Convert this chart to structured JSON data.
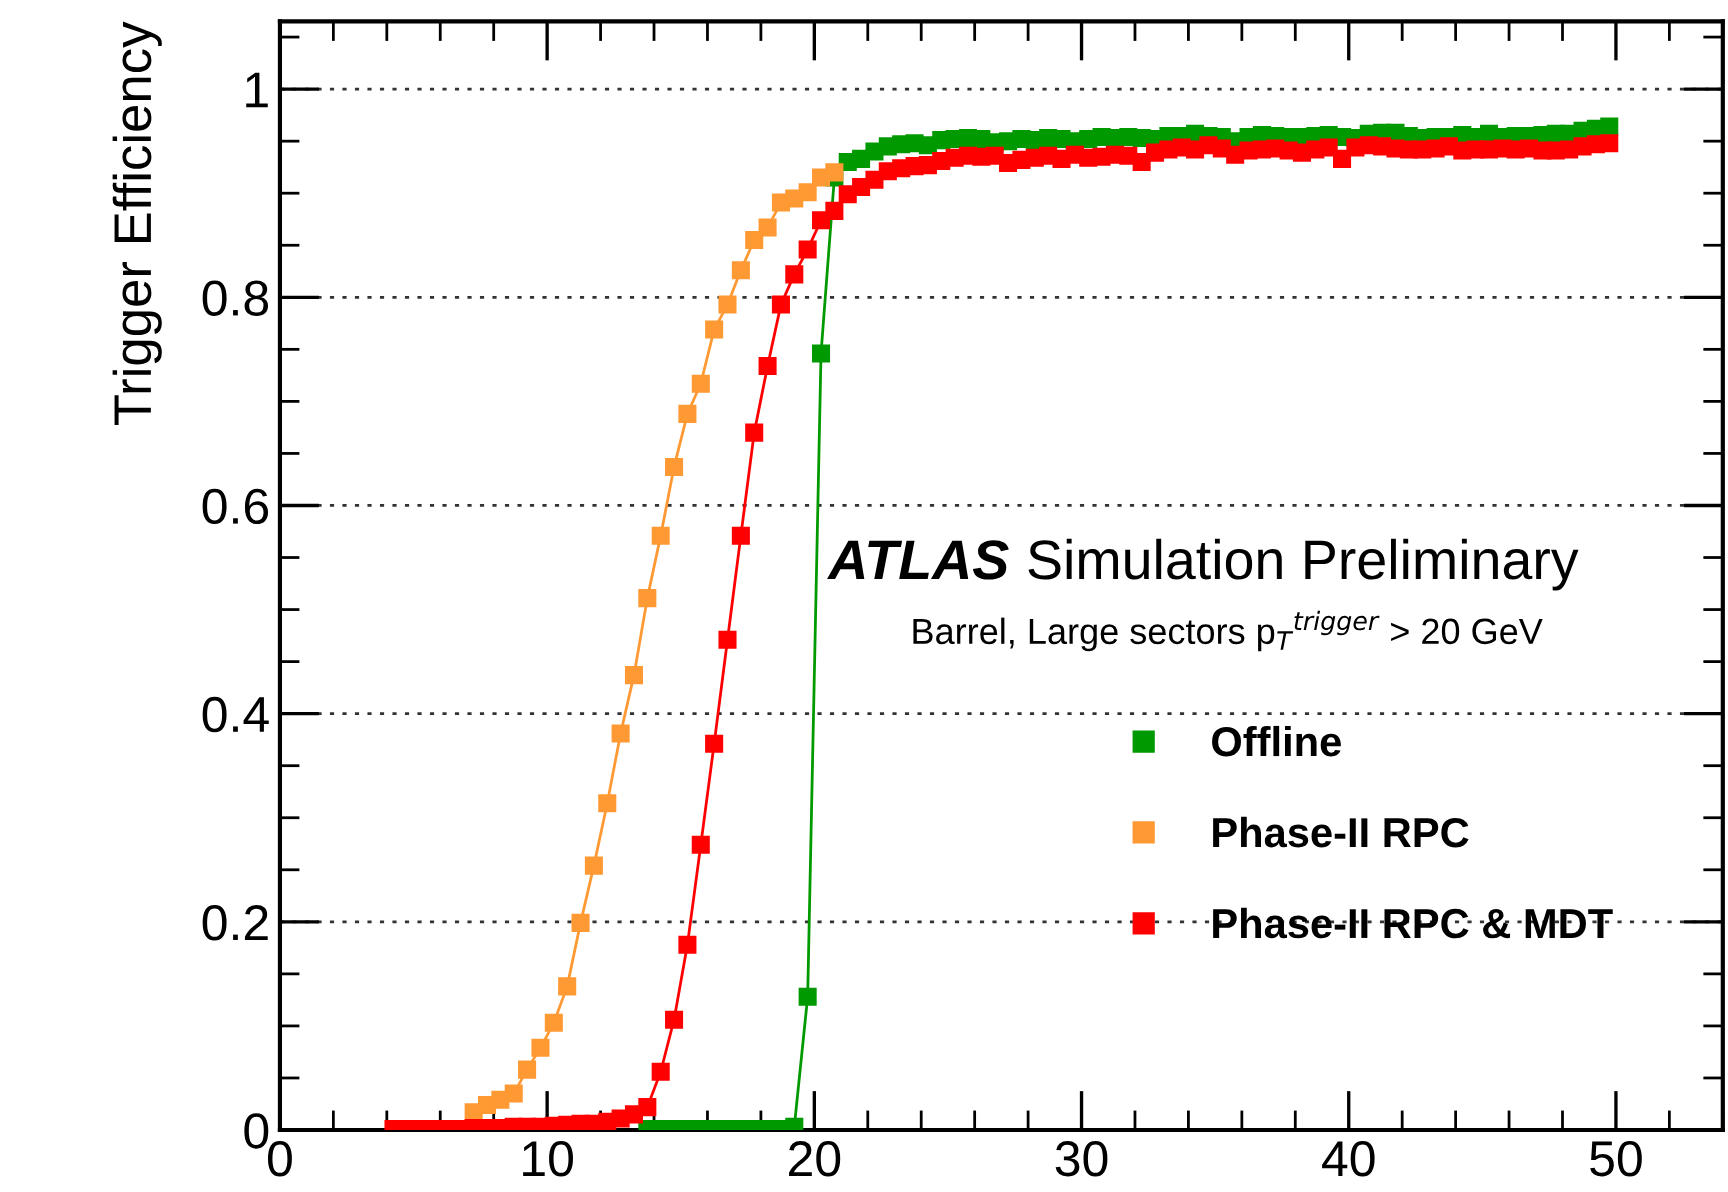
{
  "chart_data": {
    "type": "line",
    "ylabel": "Trigger Efficiency",
    "annotations": [
      "ATLAS",
      "Simulation Preliminary",
      "Barrel, Large sectors p$_{T}$$^{trigger}$ > 20 GeV"
    ],
    "x": [
      4.25,
      4.75,
      5.25,
      5.75,
      6.25,
      6.75,
      7.25,
      7.75,
      8.25,
      8.75,
      9.25,
      9.75,
      10.25,
      10.75,
      11.25,
      11.75,
      12.25,
      12.75,
      13.25,
      13.75,
      14.25,
      14.75,
      15.25,
      15.75,
      16.25,
      16.75,
      17.25,
      17.75,
      18.25,
      18.75,
      19.25,
      19.75,
      20.25,
      20.75,
      21.25,
      21.75,
      22.25,
      22.75,
      23.25,
      23.75,
      24.25,
      24.75,
      25.25,
      25.75,
      26.25,
      26.75,
      27.25,
      27.75,
      28.25,
      28.75,
      29.25,
      29.75,
      30.25,
      30.75,
      31.25,
      31.75,
      32.25,
      32.75,
      33.25,
      33.75,
      34.25,
      34.75,
      35.25,
      35.75,
      36.25,
      36.75,
      37.25,
      37.75,
      38.25,
      38.75,
      39.25,
      39.75,
      40.25,
      40.75,
      41.25,
      41.75,
      42.25,
      42.75,
      43.25,
      43.75,
      44.25,
      44.75,
      45.25,
      45.75,
      46.25,
      46.75,
      47.25,
      47.75,
      48.25,
      48.75,
      49.25,
      49.75
    ],
    "series": [
      {
        "name": "Offline",
        "color": "#009900",
        "values": [
          null,
          null,
          null,
          null,
          null,
          null,
          null,
          null,
          null,
          null,
          null,
          null,
          null,
          null,
          null,
          null,
          null,
          null,
          null,
          0.001,
          0.001,
          0.001,
          0.001,
          0.001,
          0.001,
          0.001,
          0.001,
          0.001,
          0.001,
          0.001,
          0.003,
          0.128,
          0.746,
          0.915,
          0.93,
          0.933,
          0.94,
          0.945,
          0.947,
          0.948,
          0.946,
          0.951,
          0.952,
          0.953,
          0.952,
          0.949,
          0.95,
          0.952,
          0.951,
          0.953,
          0.952,
          0.95,
          0.952,
          0.954,
          0.953,
          0.954,
          0.953,
          0.952,
          0.955,
          0.955,
          0.957,
          0.955,
          0.954,
          0.95,
          0.954,
          0.956,
          0.955,
          0.954,
          0.954,
          0.955,
          0.956,
          0.954,
          0.953,
          0.957,
          0.958,
          0.958,
          0.955,
          0.953,
          0.954,
          0.954,
          0.956,
          0.954,
          0.957,
          0.954,
          0.955,
          0.955,
          0.956,
          0.957,
          0.957,
          0.96,
          0.962,
          0.964
        ]
      },
      {
        "name": "Phase-II RPC",
        "color": "#ff9933",
        "values": [
          null,
          null,
          null,
          null,
          null,
          null,
          0.017,
          0.024,
          0.029,
          0.035,
          0.058,
          0.079,
          0.103,
          0.138,
          0.199,
          0.254,
          0.314,
          0.381,
          0.437,
          0.511,
          0.571,
          0.637,
          0.688,
          0.717,
          0.769,
          0.793,
          0.826,
          0.855,
          0.867,
          0.891,
          0.895,
          0.901,
          0.915,
          0.92,
          null,
          null,
          null,
          null,
          null,
          null,
          null,
          null,
          null,
          null,
          null,
          null,
          null,
          null,
          null,
          null,
          null,
          null,
          null,
          null,
          null,
          null,
          null,
          null,
          null,
          null,
          null,
          null,
          null,
          null,
          null,
          null,
          null,
          null,
          null,
          null,
          null,
          null,
          null,
          null,
          null,
          null,
          null,
          null,
          null,
          null,
          null,
          null,
          null,
          null,
          null,
          null,
          null,
          null,
          null,
          null,
          null,
          null
        ]
      },
      {
        "name": "Phase-II RPC & MDT",
        "color": "#ff0000",
        "values": [
          0.001,
          0.001,
          0.001,
          0.001,
          0.001,
          0.001,
          0.002,
          0.002,
          0.002,
          0.003,
          0.003,
          0.003,
          0.004,
          0.005,
          0.006,
          0.006,
          0.008,
          0.011,
          0.015,
          0.022,
          0.056,
          0.106,
          0.178,
          0.274,
          0.371,
          0.471,
          0.571,
          0.67,
          0.734,
          0.793,
          0.822,
          0.846,
          0.874,
          0.883,
          0.899,
          0.906,
          0.913,
          0.921,
          0.924,
          0.926,
          0.927,
          0.931,
          0.934,
          0.936,
          0.935,
          0.936,
          0.929,
          0.932,
          0.934,
          0.936,
          0.933,
          0.937,
          0.934,
          0.935,
          0.937,
          0.936,
          0.93,
          0.939,
          0.942,
          0.944,
          0.942,
          0.946,
          0.943,
          0.937,
          0.941,
          0.942,
          0.943,
          0.941,
          0.939,
          0.942,
          0.944,
          0.933,
          0.944,
          0.946,
          0.945,
          0.943,
          0.942,
          0.942,
          0.943,
          0.945,
          0.941,
          0.942,
          0.942,
          0.943,
          0.942,
          0.943,
          0.941,
          0.941,
          0.942,
          0.945,
          0.947,
          0.948
        ]
      }
    ],
    "xlim": [
      0,
      54
    ],
    "xticks": [
      0,
      10,
      20,
      30,
      40,
      50
    ],
    "ylim": [
      0,
      1.065
    ],
    "yticks": [
      0,
      0.2,
      0.4,
      0.6,
      0.8,
      1
    ],
    "grid": "y",
    "legend": "right",
    "marker": "square",
    "line_style": "solid"
  }
}
